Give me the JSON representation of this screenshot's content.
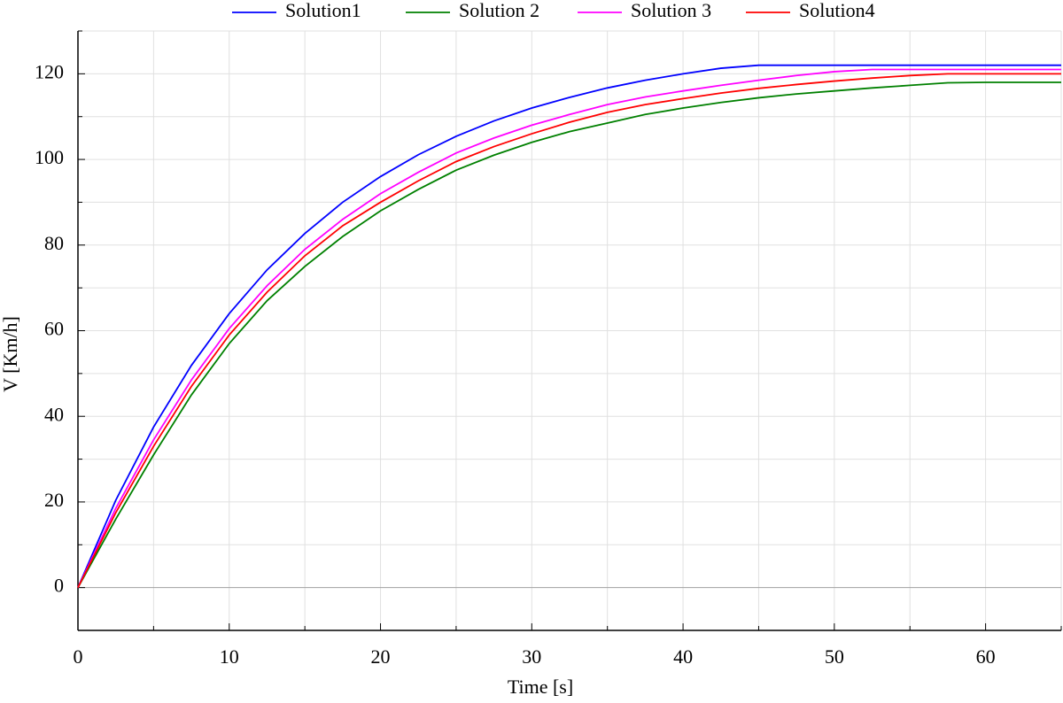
{
  "chart_data": {
    "type": "line",
    "x_label": "Time [s]",
    "y_label": "V [Km/h]",
    "x": [
      0,
      2.5,
      5,
      7.5,
      10,
      12.5,
      15,
      17.5,
      20,
      22.5,
      25,
      27.5,
      30,
      32.5,
      35,
      37.5,
      40,
      42.5,
      45,
      47.5,
      50,
      52.5,
      55,
      57.5,
      60,
      62.5,
      65
    ],
    "series": [
      {
        "name": "Solution1",
        "color": "#0000ff",
        "values": [
          0,
          20.4,
          37.5,
          51.9,
          64,
          74.2,
          82.7,
          90,
          96,
          101.1,
          105.4,
          109,
          112,
          114.5,
          116.7,
          118.5,
          120,
          121.3,
          122,
          122,
          122,
          122,
          122,
          122,
          122,
          122,
          122
        ]
      },
      {
        "name": "Solution 2",
        "color": "#008000",
        "values": [
          0,
          16,
          31,
          45,
          57,
          67,
          75,
          82,
          88,
          93,
          97.5,
          101,
          104,
          106.5,
          108.5,
          110.5,
          112,
          113.3,
          114.4,
          115.3,
          116,
          116.7,
          117.3,
          117.9,
          118,
          118,
          118
        ]
      },
      {
        "name": "Solution 3",
        "color": "#ff00ff",
        "values": [
          0,
          18.5,
          34.5,
          48.5,
          60.5,
          70.5,
          79,
          86,
          92,
          97,
          101.5,
          105,
          108,
          110.5,
          112.8,
          114.6,
          116,
          117.3,
          118.5,
          119.6,
          120.5,
          121,
          121,
          121,
          121,
          121,
          121
        ]
      },
      {
        "name": "Solution4",
        "color": "#ff0000",
        "values": [
          0,
          17.5,
          33,
          47,
          59,
          69,
          77.5,
          84.5,
          90,
          95,
          99.5,
          103,
          106,
          108.7,
          111,
          112.8,
          114.2,
          115.5,
          116.6,
          117.5,
          118.3,
          119,
          119.6,
          120,
          120,
          120,
          120
        ]
      }
    ],
    "xlim": [
      0,
      65
    ],
    "xticks": [
      0,
      10,
      20,
      30,
      40,
      50,
      60
    ],
    "xminorticks": [
      5,
      15,
      25,
      35,
      45,
      55,
      65
    ],
    "ylim": [
      -10,
      130
    ],
    "yticks": [
      0,
      20,
      40,
      60,
      80,
      100,
      120
    ],
    "yminorticks": [
      -10,
      10,
      30,
      50,
      70,
      90,
      110,
      130
    ],
    "grid": true,
    "legend": "top"
  }
}
